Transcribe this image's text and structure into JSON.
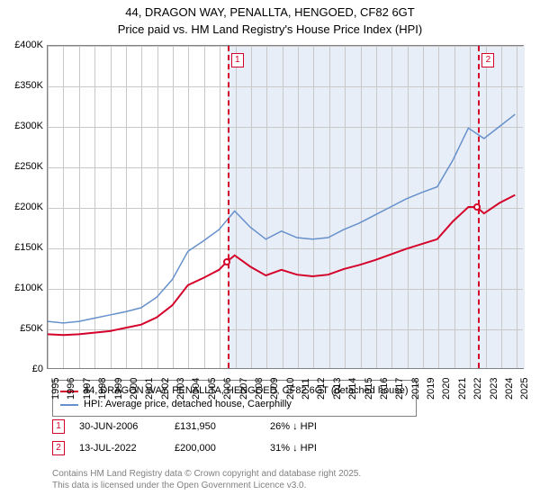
{
  "title": "44, DRAGON WAY, PENALLTA, HENGOED, CF82 6GT",
  "subtitle": "Price paid vs. HM Land Registry's House Price Index (HPI)",
  "chart": {
    "type": "line",
    "background_color": "#ffffff",
    "grid_color": "#c8c8c8",
    "shade_color": "#e8eef7",
    "xlim": [
      1995,
      2025.5
    ],
    "ylim": [
      0,
      400000
    ],
    "ytick_step": 50000,
    "yticks_labels": [
      "£0",
      "£50K",
      "£100K",
      "£150K",
      "£200K",
      "£250K",
      "£300K",
      "£350K",
      "£400K"
    ],
    "xticks": [
      1995,
      1996,
      1997,
      1998,
      1999,
      2000,
      2001,
      2002,
      2003,
      2004,
      2005,
      2006,
      2007,
      2008,
      2009,
      2010,
      2011,
      2012,
      2013,
      2014,
      2015,
      2016,
      2017,
      2018,
      2019,
      2020,
      2021,
      2022,
      2023,
      2024,
      2025
    ],
    "shade_start": 2006.5,
    "shade_end": 2025.5,
    "series": [
      {
        "name": "hpi",
        "color": "#6690cc",
        "width": 1.5,
        "data": [
          [
            1995,
            58000
          ],
          [
            1996,
            56000
          ],
          [
            1997,
            58000
          ],
          [
            1998,
            62000
          ],
          [
            1999,
            66000
          ],
          [
            2000,
            70000
          ],
          [
            2001,
            75000
          ],
          [
            2002,
            88000
          ],
          [
            2003,
            110000
          ],
          [
            2004,
            145000
          ],
          [
            2005,
            158000
          ],
          [
            2006,
            172000
          ],
          [
            2007,
            195000
          ],
          [
            2008,
            175000
          ],
          [
            2009,
            160000
          ],
          [
            2010,
            170000
          ],
          [
            2011,
            162000
          ],
          [
            2012,
            160000
          ],
          [
            2013,
            162000
          ],
          [
            2014,
            172000
          ],
          [
            2015,
            180000
          ],
          [
            2016,
            190000
          ],
          [
            2017,
            200000
          ],
          [
            2018,
            210000
          ],
          [
            2019,
            218000
          ],
          [
            2020,
            225000
          ],
          [
            2021,
            258000
          ],
          [
            2022,
            298000
          ],
          [
            2023,
            285000
          ],
          [
            2024,
            300000
          ],
          [
            2025,
            315000
          ]
        ]
      },
      {
        "name": "price_paid",
        "color": "#d4002a",
        "width": 2,
        "data": [
          [
            1995,
            42000
          ],
          [
            1996,
            41000
          ],
          [
            1997,
            42000
          ],
          [
            1998,
            44000
          ],
          [
            1999,
            46000
          ],
          [
            2000,
            50000
          ],
          [
            2001,
            54000
          ],
          [
            2002,
            63000
          ],
          [
            2003,
            78000
          ],
          [
            2004,
            103000
          ],
          [
            2005,
            112000
          ],
          [
            2006,
            122000
          ],
          [
            2006.5,
            131950
          ],
          [
            2007,
            140000
          ],
          [
            2008,
            126000
          ],
          [
            2009,
            115000
          ],
          [
            2010,
            122000
          ],
          [
            2011,
            116000
          ],
          [
            2012,
            114000
          ],
          [
            2013,
            116000
          ],
          [
            2014,
            123000
          ],
          [
            2015,
            128000
          ],
          [
            2016,
            134000
          ],
          [
            2017,
            141000
          ],
          [
            2018,
            148000
          ],
          [
            2019,
            154000
          ],
          [
            2020,
            160000
          ],
          [
            2021,
            182000
          ],
          [
            2022,
            200000
          ],
          [
            2022.53,
            200000
          ],
          [
            2023,
            192000
          ],
          [
            2024,
            205000
          ],
          [
            2025,
            215000
          ]
        ]
      }
    ],
    "markers": [
      {
        "id": "1",
        "x": 2006.5,
        "y": 131950,
        "color": "#d4002a"
      },
      {
        "id": "2",
        "x": 2022.53,
        "y": 200000,
        "color": "#d4002a"
      }
    ],
    "label_fontsize": 11
  },
  "legend": {
    "items": [
      {
        "label": "44, DRAGON WAY, PENALLTA, HENGOED, CF82 6GT (detached house)",
        "color": "#d4002a"
      },
      {
        "label": "HPI: Average price, detached house, Caerphilly",
        "color": "#6690cc"
      }
    ]
  },
  "events": [
    {
      "id": "1",
      "date": "30-JUN-2006",
      "price": "£131,950",
      "pct": "26% ↓ HPI",
      "color": "#d4002a"
    },
    {
      "id": "2",
      "date": "13-JUL-2022",
      "price": "£200,000",
      "pct": "31% ↓ HPI",
      "color": "#d4002a"
    }
  ],
  "footer": {
    "line1": "Contains HM Land Registry data © Crown copyright and database right 2025.",
    "line2": "This data is licensed under the Open Government Licence v3.0."
  }
}
